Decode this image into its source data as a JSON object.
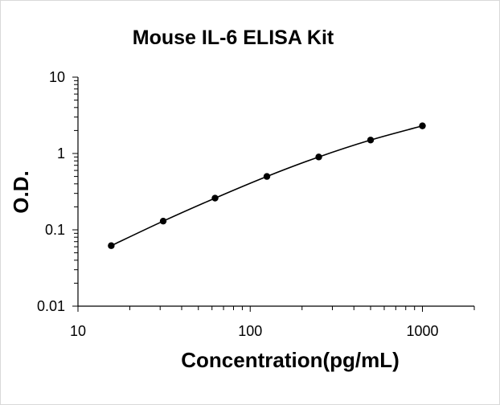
{
  "chart_data": {
    "type": "scatter",
    "title": "Mouse IL-6 ELISA Kit",
    "xlabel": "Concentration(pg/mL)",
    "ylabel": "O.D.",
    "x_scale": "log",
    "y_scale": "log",
    "xlim": [
      10,
      2000
    ],
    "ylim": [
      0.01,
      10
    ],
    "x_ticks": [
      {
        "value": 10,
        "label": "10"
      },
      {
        "value": 100,
        "label": "100"
      },
      {
        "value": 1000,
        "label": "1000"
      }
    ],
    "y_ticks": [
      {
        "value": 10,
        "label": "10"
      },
      {
        "value": 1,
        "label": "1"
      },
      {
        "value": 0.1,
        "label": "0.1"
      },
      {
        "value": 0.01,
        "label": "0.01"
      }
    ],
    "grid": false,
    "legend": "none",
    "series": [
      {
        "x": [
          15.6,
          31.25,
          62.5,
          125,
          250,
          500,
          1000
        ],
        "y": [
          0.062,
          0.13,
          0.26,
          0.5,
          0.9,
          1.5,
          2.3
        ],
        "color": "#000000",
        "marker": "circle",
        "line": "smooth"
      }
    ]
  }
}
